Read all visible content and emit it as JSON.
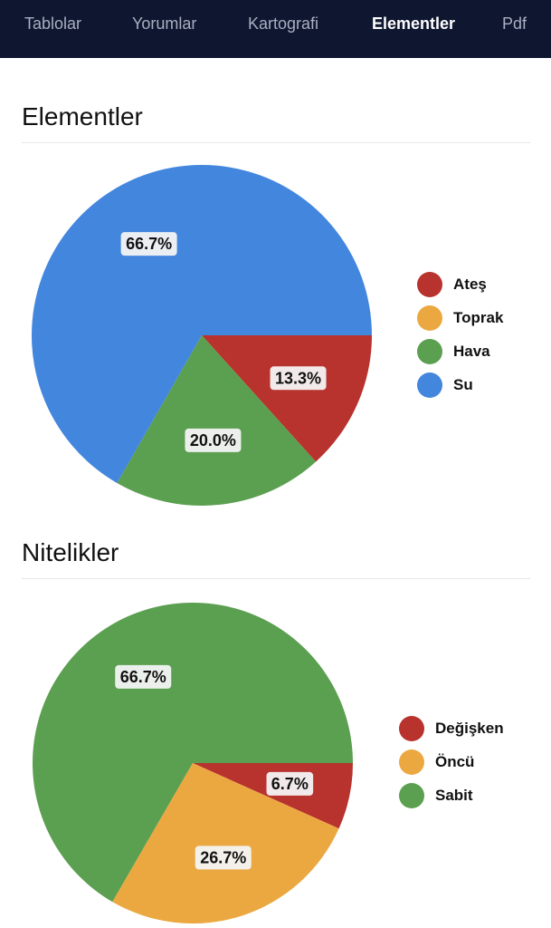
{
  "nav": {
    "tabs": [
      {
        "label": "Tablolar",
        "active": false
      },
      {
        "label": "Yorumlar",
        "active": false
      },
      {
        "label": "Kartografi",
        "active": false
      },
      {
        "label": "Elementler",
        "active": true
      },
      {
        "label": "Pdf",
        "active": false
      }
    ]
  },
  "colors": {
    "nav_bg": "#0e1630",
    "red": "#b8322e",
    "orange": "#eba841",
    "green": "#5b9f50",
    "blue": "#4386de"
  },
  "sections": [
    {
      "title": "Elementler",
      "legend": [
        {
          "label": "Ateş",
          "color": "#b8322e"
        },
        {
          "label": "Toprak",
          "color": "#eba841"
        },
        {
          "label": "Hava",
          "color": "#5b9f50"
        },
        {
          "label": "Su",
          "color": "#4386de"
        }
      ]
    },
    {
      "title": "Nitelikler",
      "legend": [
        {
          "label": "Değişken",
          "color": "#b8322e"
        },
        {
          "label": "Öncü",
          "color": "#eba841"
        },
        {
          "label": "Sabit",
          "color": "#5b9f50"
        }
      ]
    }
  ],
  "chart_data": [
    {
      "type": "pie",
      "title": "Elementler",
      "categories": [
        "Ateş",
        "Toprak",
        "Hava",
        "Su"
      ],
      "values": [
        13.3,
        0.0,
        20.0,
        66.7
      ],
      "labels": [
        "13.3%",
        "",
        "20.0%",
        "66.7%"
      ],
      "colors": [
        "#b8322e",
        "#eba841",
        "#5b9f50",
        "#4386de"
      ],
      "legend_position": "right"
    },
    {
      "type": "pie",
      "title": "Nitelikler",
      "categories": [
        "Değişken",
        "Öncü",
        "Sabit"
      ],
      "values": [
        6.7,
        26.7,
        66.7
      ],
      "labels": [
        "6.7%",
        "26.7%",
        "66.7%"
      ],
      "colors": [
        "#b8322e",
        "#eba841",
        "#5b9f50"
      ],
      "legend_position": "right"
    }
  ]
}
